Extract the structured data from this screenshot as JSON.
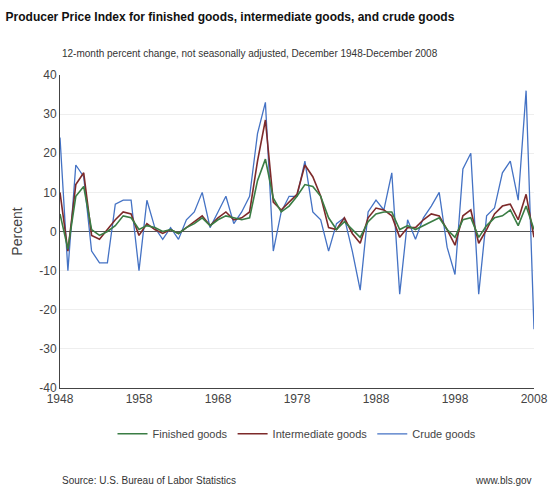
{
  "chart_data": {
    "type": "line",
    "title": "Producer Price Index for finished goods, intermediate goods, and crude goods",
    "subtitle": "12-month percent change, not seasonally adjusted, December 1948-December 2008",
    "annotations": [
      "Source: U.S. Bureau of Labor Statistics",
      "www.bls.gov"
    ],
    "y_label": "Percent",
    "x": [
      1948,
      1949,
      1950,
      1951,
      1952,
      1953,
      1954,
      1955,
      1956,
      1957,
      1958,
      1959,
      1960,
      1961,
      1962,
      1963,
      1964,
      1965,
      1966,
      1967,
      1968,
      1969,
      1970,
      1971,
      1972,
      1973,
      1974,
      1975,
      1976,
      1977,
      1978,
      1979,
      1980,
      1981,
      1982,
      1983,
      1984,
      1985,
      1986,
      1987,
      1988,
      1989,
      1990,
      1991,
      1992,
      1993,
      1994,
      1995,
      1996,
      1997,
      1998,
      1999,
      2000,
      2001,
      2002,
      2003,
      2004,
      2005,
      2006,
      2007,
      2008
    ],
    "series": [
      {
        "name": "Finished goods",
        "color": "#3a7d44",
        "values": [
          4.5,
          -4.5,
          9.0,
          11.5,
          0.5,
          -1.0,
          0.0,
          1.5,
          4.0,
          3.5,
          0.5,
          1.5,
          1.0,
          0.0,
          0.5,
          -0.5,
          1.0,
          2.0,
          3.5,
          1.5,
          3.0,
          4.0,
          3.5,
          3.0,
          3.5,
          13.0,
          18.5,
          8.5,
          5.0,
          6.5,
          9.0,
          12.0,
          11.5,
          9.0,
          3.5,
          0.5,
          2.5,
          0.5,
          -1.5,
          2.5,
          4.5,
          5.0,
          5.0,
          0.5,
          1.5,
          0.5,
          1.5,
          2.5,
          3.5,
          0.5,
          -1.5,
          3.0,
          3.5,
          -1.5,
          1.5,
          3.5,
          4.0,
          5.5,
          1.5,
          6.5,
          0.5
        ]
      },
      {
        "name": "Intermediate goods",
        "color": "#7d2a2a",
        "values": [
          10.0,
          -5.0,
          12.0,
          15.0,
          -1.0,
          -2.0,
          0.5,
          3.0,
          5.0,
          4.5,
          -1.0,
          2.0,
          0.5,
          -0.5,
          0.5,
          -0.5,
          1.0,
          2.5,
          4.0,
          1.5,
          3.5,
          5.0,
          3.0,
          3.5,
          5.0,
          18.0,
          28.5,
          7.5,
          5.5,
          7.5,
          9.5,
          17.0,
          14.0,
          9.0,
          1.0,
          0.5,
          3.5,
          -0.5,
          -3.0,
          3.5,
          6.0,
          5.5,
          4.0,
          -1.5,
          1.0,
          1.0,
          3.0,
          4.5,
          4.0,
          0.5,
          -3.5,
          4.0,
          5.5,
          -3.0,
          0.5,
          4.5,
          6.5,
          7.0,
          3.0,
          9.5,
          -1.5
        ]
      },
      {
        "name": "Crude goods",
        "color": "#4472c4",
        "values": [
          24.0,
          -10.0,
          17.0,
          14.0,
          -5.0,
          -8.0,
          -8.0,
          7.0,
          8.0,
          8.0,
          -10.0,
          8.0,
          1.0,
          -2.0,
          1.0,
          -2.0,
          3.0,
          5.0,
          10.0,
          1.0,
          5.0,
          9.0,
          2.0,
          5.0,
          9.0,
          25.0,
          33.0,
          -5.0,
          5.0,
          9.0,
          9.0,
          18.0,
          5.0,
          3.0,
          -5.0,
          2.0,
          3.5,
          -5.0,
          -15.0,
          5.0,
          8.0,
          5.5,
          15.0,
          -16.0,
          3.0,
          -2.0,
          3.5,
          6.5,
          10.0,
          -4.0,
          -11.0,
          16.0,
          20.0,
          -16.0,
          4.0,
          6.0,
          15.0,
          18.0,
          8.0,
          36.0,
          -25.0
        ]
      }
    ],
    "xlim": [
      1948,
      2008
    ],
    "xticks": [
      1948,
      1958,
      1968,
      1978,
      1988,
      1998,
      2008
    ],
    "ylim": [
      -40,
      40
    ],
    "yticks": [
      -40,
      -30,
      -20,
      -10,
      0,
      10,
      20,
      30,
      40
    ],
    "grid": true,
    "legend": "bottom"
  }
}
